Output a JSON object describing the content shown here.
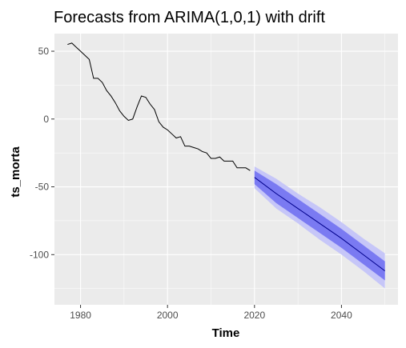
{
  "chart_data": {
    "type": "line",
    "title": "Forecasts from ARIMA(1,0,1) with drift",
    "xlabel": "Time",
    "ylabel": "ts_morta",
    "xlim": [
      1974,
      2053
    ],
    "ylim": [
      -137,
      63
    ],
    "x_ticks": [
      1980,
      2000,
      2020,
      2040
    ],
    "y_ticks": [
      50,
      0,
      -50,
      -100
    ],
    "y_tick_labels": [
      "50",
      "0",
      "-50",
      "-100"
    ],
    "x_minor_ticks": [
      1990,
      2010,
      2030,
      2050
    ],
    "y_minor_ticks": [
      25,
      -25,
      -75,
      -125
    ],
    "grid": true,
    "legend": "none",
    "colors": {
      "panel": "#EBEBEB",
      "grid": "#FFFFFF",
      "history": "#000000",
      "forecast_mean": "#00008B",
      "interval_80": "#7A7AF2",
      "interval_95": "#C6C6F8"
    },
    "series": [
      {
        "role": "history",
        "x": [
          1977,
          1978,
          1979,
          1980,
          1981,
          1982,
          1983,
          1984,
          1985,
          1986,
          1987,
          1988,
          1989,
          1990,
          1991,
          1992,
          1993,
          1994,
          1995,
          1996,
          1997,
          1998,
          1999,
          2000,
          2001,
          2002,
          2003,
          2004,
          2005,
          2006,
          2007,
          2008,
          2009,
          2010,
          2011,
          2012,
          2013,
          2014,
          2015,
          2016,
          2017,
          2018,
          2019
        ],
        "y": [
          55,
          56,
          53,
          50,
          47,
          44,
          30,
          30,
          27,
          21,
          17,
          12,
          6,
          2,
          -1,
          0,
          9,
          17,
          16,
          11,
          7,
          -2,
          -6,
          -8,
          -11,
          -14,
          -13,
          -20,
          -20,
          -21,
          -22,
          -24,
          -25,
          -29,
          -29,
          -28,
          -31,
          -31,
          -31,
          -36,
          -36,
          -36,
          -38
        ]
      },
      {
        "role": "forecast",
        "x": [
          2020,
          2025,
          2030,
          2035,
          2040,
          2045,
          2050
        ],
        "mean": [
          -43,
          -55,
          -66,
          -77,
          -88,
          -100,
          -112
        ],
        "lo80": [
          -48,
          -62,
          -73,
          -84,
          -95,
          -107,
          -119
        ],
        "hi80": [
          -38,
          -48,
          -59,
          -70,
          -81,
          -93,
          -105
        ],
        "lo95": [
          -51,
          -66,
          -77,
          -89,
          -100,
          -112,
          -125
        ],
        "hi95": [
          -35,
          -44,
          -55,
          -65,
          -76,
          -88,
          -99
        ]
      }
    ]
  }
}
